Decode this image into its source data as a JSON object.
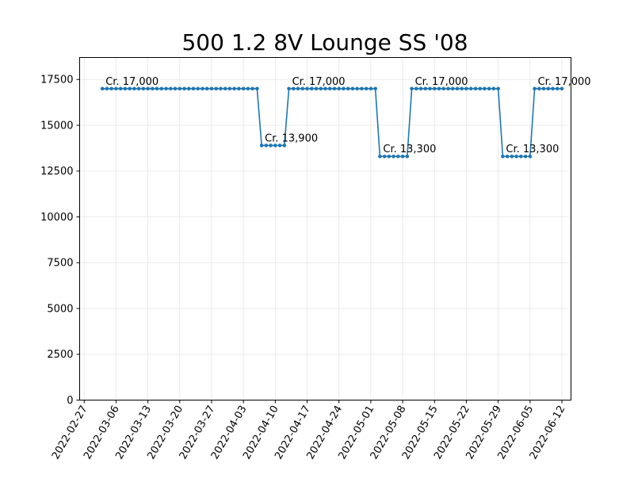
{
  "chart_data": {
    "type": "line",
    "title": "500 1.2 8V Lounge SS '08",
    "xlabel": "",
    "ylabel": "",
    "ylim": [
      0,
      18700
    ],
    "xlim": [
      "2022-02-26",
      "2022-06-14"
    ],
    "grid": true,
    "legend": "none",
    "colors": {
      "line": "#1f77b4",
      "grid": "#e6e6e6"
    },
    "y_ticks": [
      0,
      2500,
      5000,
      7500,
      10000,
      12500,
      15000,
      17500
    ],
    "x_ticks": [
      "2022-02-27",
      "2022-03-06",
      "2022-03-13",
      "2022-03-20",
      "2022-03-27",
      "2022-04-03",
      "2022-04-10",
      "2022-04-17",
      "2022-04-24",
      "2022-05-01",
      "2022-05-08",
      "2022-05-15",
      "2022-05-22",
      "2022-05-29",
      "2022-06-05",
      "2022-06-12"
    ],
    "series": [
      {
        "segments": [
          {
            "start": "2022-03-03",
            "end": "2022-04-06",
            "value": 17000
          },
          {
            "start": "2022-04-07",
            "end": "2022-04-12",
            "value": 13900
          },
          {
            "start": "2022-04-13",
            "end": "2022-05-02",
            "value": 17000
          },
          {
            "start": "2022-05-03",
            "end": "2022-05-09",
            "value": 13300
          },
          {
            "start": "2022-05-10",
            "end": "2022-05-29",
            "value": 17000
          },
          {
            "start": "2022-05-30",
            "end": "2022-06-05",
            "value": 13300
          },
          {
            "start": "2022-06-06",
            "end": "2022-06-12",
            "value": 17000
          }
        ]
      }
    ],
    "annotations": [
      {
        "date": "2022-03-03",
        "value": 17000,
        "text": "Cr. 17,000"
      },
      {
        "date": "2022-04-07",
        "value": 13900,
        "text": "Cr. 13,900"
      },
      {
        "date": "2022-04-13",
        "value": 17000,
        "text": "Cr. 17,000"
      },
      {
        "date": "2022-05-03",
        "value": 13300,
        "text": "Cr. 13,300"
      },
      {
        "date": "2022-05-10",
        "value": 17000,
        "text": "Cr. 17,000"
      },
      {
        "date": "2022-05-30",
        "value": 13300,
        "text": "Cr. 13,300"
      },
      {
        "date": "2022-06-06",
        "value": 17000,
        "text": "Cr. 17,000"
      }
    ]
  }
}
